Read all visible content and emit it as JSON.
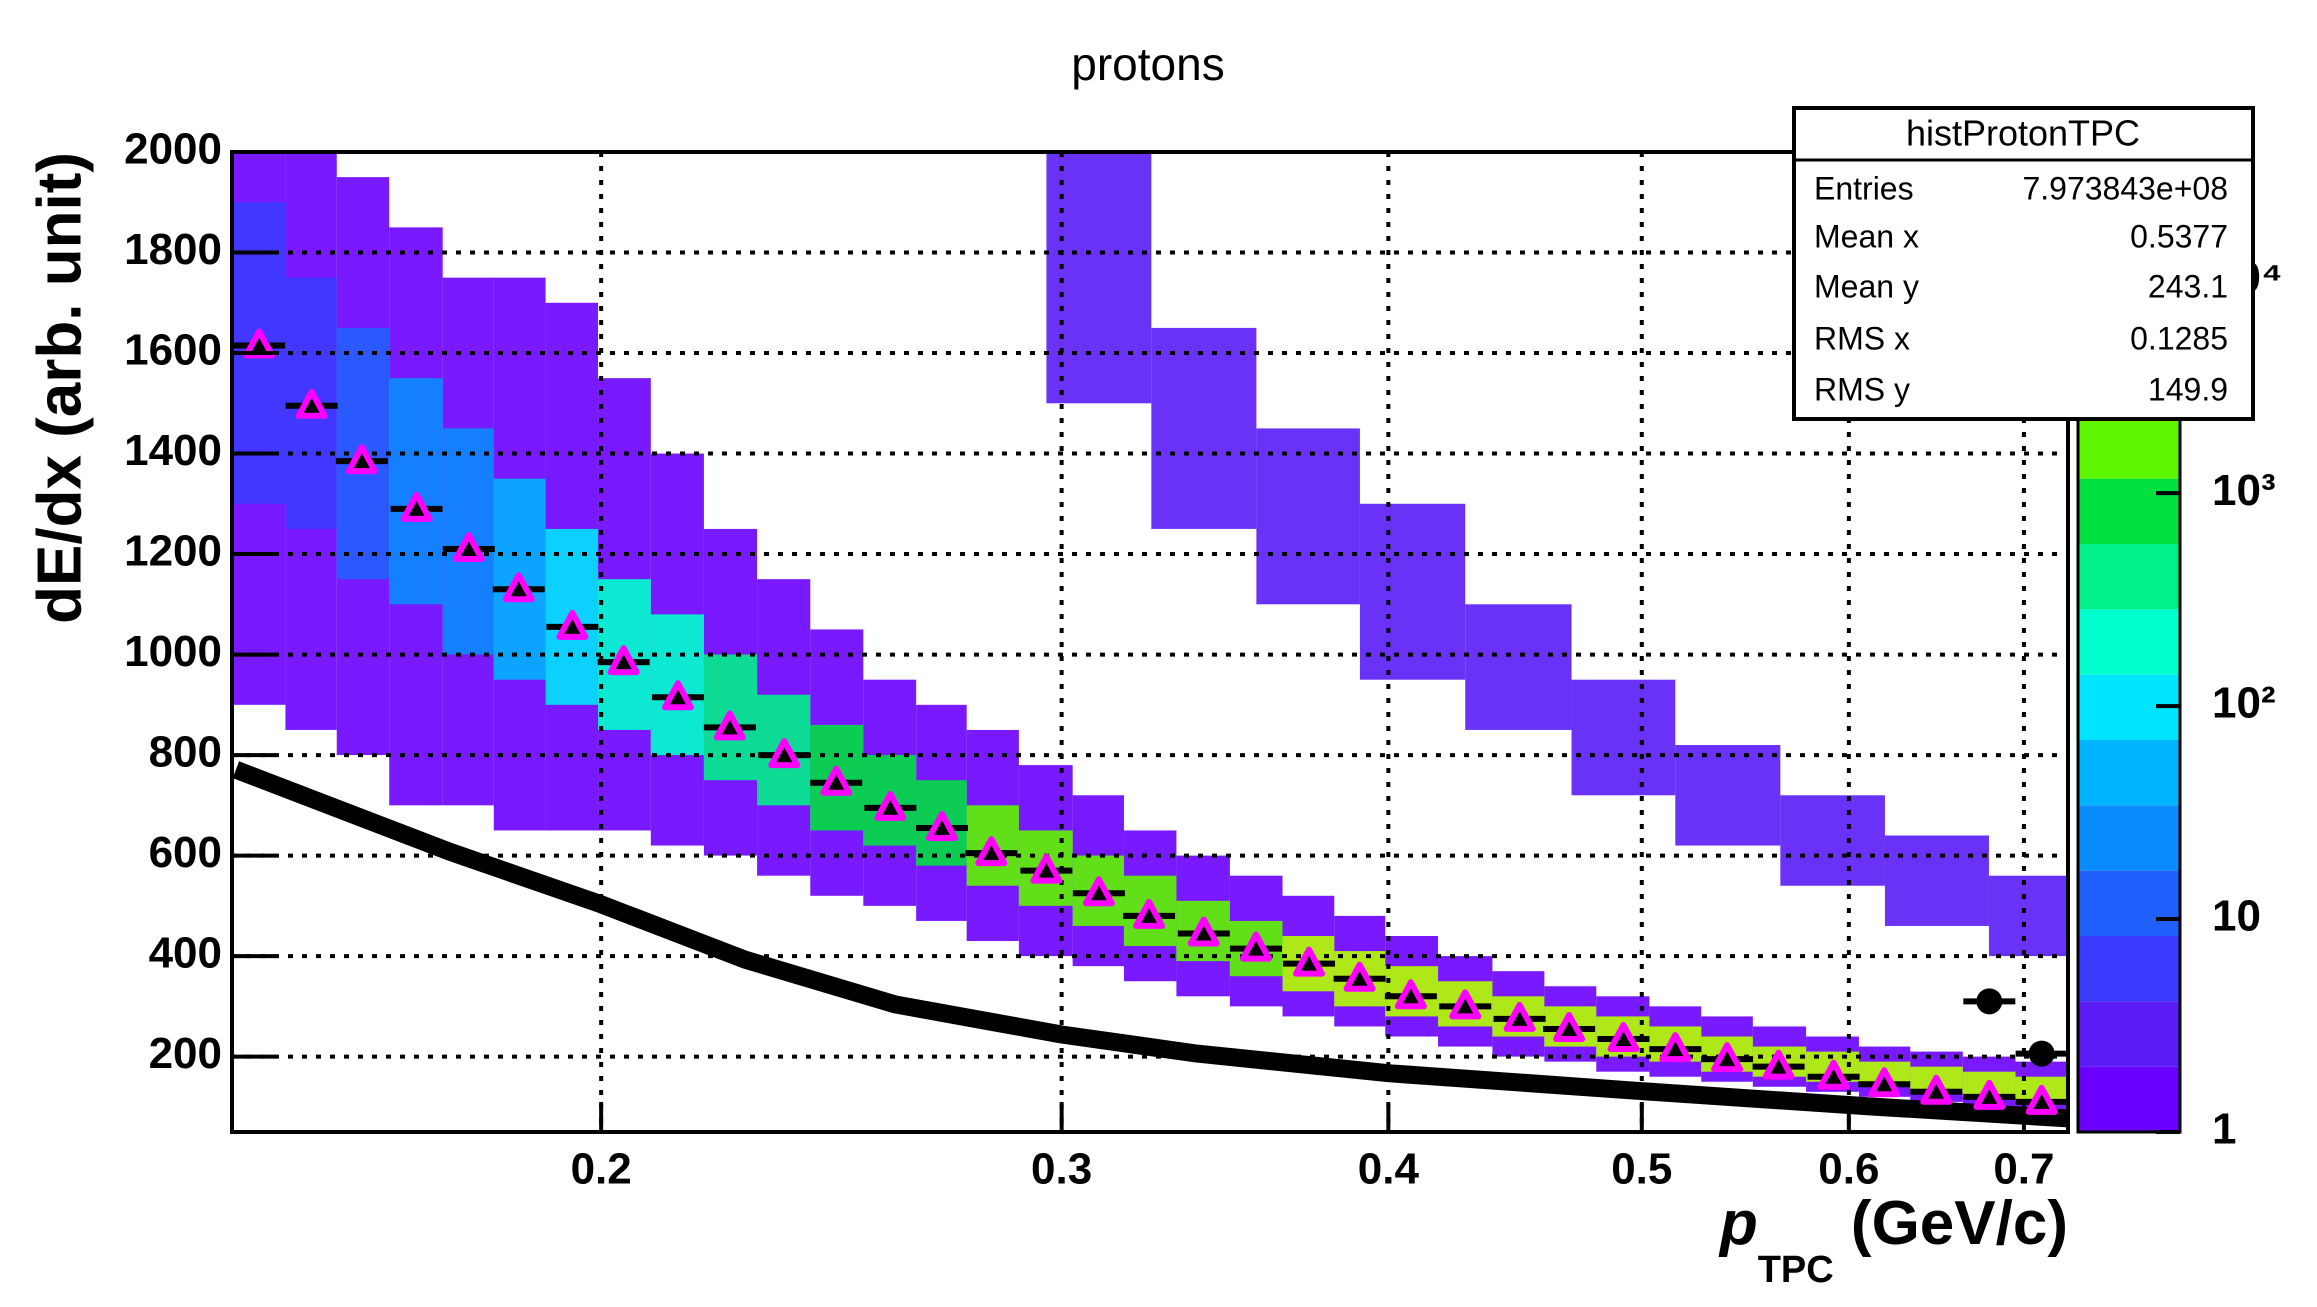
{
  "chart_data": {
    "type": "histogram2d",
    "title": "protons",
    "y_label": "dE/dx (arb. unit)",
    "x_label": {
      "main": "p",
      "sub": "TPC",
      "rest": " (GeV/c)"
    },
    "log_x": true,
    "xlim": [
      0.1445,
      0.7277
    ],
    "xticks": [
      0.2,
      0.3,
      0.4,
      0.5,
      0.6,
      0.7
    ],
    "ylim": [
      50,
      2000
    ],
    "yticks": [
      200,
      400,
      600,
      800,
      1000,
      1200,
      1400,
      1600,
      1800,
      2000
    ],
    "grid": true,
    "log_z": true,
    "zlim": [
      1,
      40000
    ],
    "zticks": [
      1,
      10,
      {
        "value": 100,
        "label": "10²"
      },
      {
        "value": 1000,
        "label": "10³"
      },
      {
        "value": 10000,
        "label": "10⁴"
      }
    ],
    "palette": [
      "#6a00ff",
      "#5a1cf5",
      "#3b3bff",
      "#2060ff",
      "#0a8cff",
      "#00b4ff",
      "#00e5ff",
      "#00ffcc",
      "#00f08a",
      "#00e040",
      "#5ef500",
      "#b4ff00",
      "#ffff00",
      "#ffb000",
      "#ff5000"
    ],
    "bands": [
      {
        "x": [
          0.148,
          0.155,
          0.162,
          0.17,
          0.178,
          0.186,
          0.195,
          0.204,
          0.214,
          0.224,
          0.235,
          0.246,
          0.258,
          0.27,
          0.282,
          0.296,
          0.31,
          0.324,
          0.34,
          0.356,
          0.373,
          0.39,
          0.408,
          0.428,
          0.449,
          0.469,
          0.492,
          0.515,
          0.539,
          0.564,
          0.592,
          0.619,
          0.648,
          0.679,
          0.711
        ],
        "low": [
          900,
          850,
          800,
          700,
          700,
          650,
          650,
          650,
          620,
          600,
          560,
          520,
          500,
          470,
          430,
          400,
          380,
          350,
          320,
          300,
          280,
          260,
          240,
          220,
          200,
          190,
          170,
          160,
          150,
          140,
          130,
          120,
          110,
          100,
          95
        ],
        "high": [
          2000,
          2000,
          1950,
          1850,
          1750,
          1750,
          1700,
          1550,
          1400,
          1250,
          1150,
          1050,
          950,
          900,
          850,
          780,
          720,
          650,
          600,
          560,
          520,
          480,
          440,
          400,
          370,
          340,
          320,
          300,
          280,
          260,
          240,
          220,
          210,
          200,
          190
        ],
        "count": [
          2,
          2,
          2,
          2,
          2,
          2,
          2,
          2,
          2,
          2,
          2,
          2,
          2,
          2,
          2,
          2,
          2,
          2,
          2,
          2,
          2,
          2,
          2,
          2,
          2,
          2,
          2,
          2,
          2,
          2,
          2,
          2,
          2,
          2,
          2
        ]
      },
      {
        "x": [
          0.148,
          0.155,
          0.162,
          0.17,
          0.178,
          0.186,
          0.195,
          0.204,
          0.214,
          0.224,
          0.235,
          0.246,
          0.258,
          0.27,
          0.282,
          0.296,
          0.31,
          0.324,
          0.34,
          0.356,
          0.373,
          0.39,
          0.408,
          0.428,
          0.449,
          0.469,
          0.492,
          0.515,
          0.539,
          0.564,
          0.592,
          0.619,
          0.648,
          0.679,
          0.711
        ],
        "low": [
          1300,
          1250,
          1150,
          1100,
          1000,
          950,
          900,
          850,
          800,
          750,
          700,
          650,
          620,
          580,
          540,
          500,
          460,
          420,
          390,
          360,
          330,
          300,
          280,
          260,
          240,
          220,
          200,
          190,
          170,
          160,
          150,
          140,
          130,
          120,
          110
        ],
        "high": [
          1900,
          1750,
          1650,
          1550,
          1450,
          1350,
          1250,
          1150,
          1080,
          1000,
          920,
          860,
          800,
          750,
          700,
          650,
          600,
          560,
          510,
          470,
          440,
          410,
          380,
          350,
          320,
          300,
          280,
          260,
          240,
          220,
          210,
          190,
          180,
          170,
          160
        ],
        "count": [
          6,
          8,
          12,
          20,
          30,
          50,
          100,
          150,
          250,
          400,
          500,
          700,
          900,
          1100,
          1300,
          1500,
          1700,
          1800,
          2000,
          2200,
          2400,
          2500,
          2600,
          2700,
          2800,
          2900,
          3000,
          3000,
          3000,
          3000,
          3000,
          3000,
          3000,
          3000,
          3000
        ]
      },
      {
        "x": [
          0.31,
          0.34,
          0.373,
          0.408,
          0.449,
          0.492,
          0.539,
          0.592,
          0.648,
          0.711
        ],
        "low": [
          1500,
          1250,
          1100,
          950,
          850,
          720,
          620,
          540,
          460,
          400
        ],
        "high": [
          2000,
          1650,
          1450,
          1300,
          1100,
          950,
          820,
          720,
          640,
          560
        ],
        "count": [
          3,
          3,
          3,
          3,
          3,
          3,
          3,
          3,
          3,
          3
        ]
      }
    ],
    "markers": {
      "color": "#ff00ff",
      "x": [
        0.148,
        0.155,
        0.162,
        0.17,
        0.178,
        0.186,
        0.195,
        0.204,
        0.214,
        0.224,
        0.235,
        0.246,
        0.258,
        0.27,
        0.282,
        0.296,
        0.31,
        0.324,
        0.34,
        0.356,
        0.373,
        0.39,
        0.408,
        0.428,
        0.449,
        0.469,
        0.492,
        0.515,
        0.539,
        0.564,
        0.592,
        0.619,
        0.648,
        0.679,
        0.711
      ],
      "values": [
        1615,
        1495,
        1385,
        1290,
        1210,
        1130,
        1055,
        985,
        915,
        855,
        800,
        745,
        695,
        655,
        605,
        570,
        525,
        480,
        445,
        415,
        385,
        355,
        320,
        300,
        275,
        255,
        235,
        215,
        195,
        180,
        160,
        145,
        130,
        120,
        110
      ]
    },
    "points": {
      "color": "#000000",
      "x": [
        0.679,
        0.711
      ],
      "values": [
        310,
        206
      ]
    },
    "curve": {
      "color": "#000000",
      "x": [
        0.145,
        0.175,
        0.2,
        0.227,
        0.259,
        0.3,
        0.338,
        0.4,
        0.501,
        0.611,
        0.728
      ],
      "values": [
        771,
        608,
        503,
        393,
        304,
        244,
        206,
        167,
        131,
        101,
        77
      ]
    },
    "stats": {
      "title": "histProtonTPC",
      "rows": [
        [
          "Entries",
          "7.973843e+08"
        ],
        [
          "Mean x",
          "0.5377"
        ],
        [
          "Mean y",
          "243.1"
        ],
        [
          "RMS x",
          "0.1285"
        ],
        [
          "RMS y",
          "149.9"
        ]
      ]
    }
  }
}
